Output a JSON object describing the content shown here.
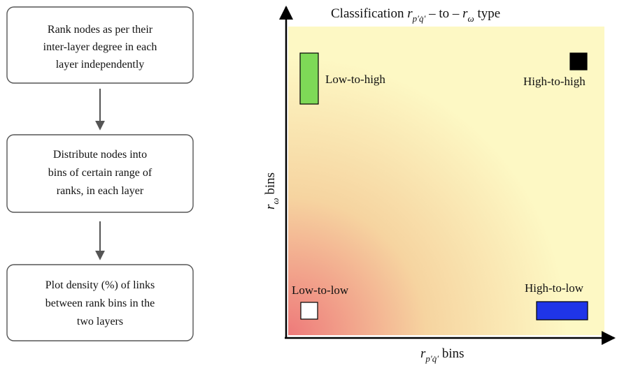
{
  "flowchart": {
    "steps": [
      {
        "lines": [
          "Rank nodes as per their",
          "inter-layer degree in each",
          "layer independently"
        ]
      },
      {
        "lines": [
          "Distribute nodes into",
          "bins of certain range of",
          "ranks, in each layer"
        ]
      },
      {
        "lines": [
          "Plot density (%) of links",
          "between rank bins in the",
          "two layers"
        ]
      }
    ]
  },
  "classification_plot": {
    "title": {
      "prefix": "Classification ",
      "var1": "r",
      "var1_sub": "p′q̇′",
      "middle": " – to – ",
      "var2": "r",
      "var2_sub": "ω",
      "suffix": " type"
    },
    "x_axis_label": {
      "var": "r",
      "sub": "p′q̇′",
      "suffix": " bins"
    },
    "y_axis_label": {
      "var": "r",
      "sub": "ω",
      "suffix": " bins"
    },
    "quadrants": [
      {
        "label": "Low-to-high",
        "color": "#7ed957"
      },
      {
        "label": "High-to-high",
        "color": "#000000"
      },
      {
        "label": "Low-to-low",
        "color": "#ffffff"
      },
      {
        "label": "High-to-low",
        "color": "#1f35e8"
      }
    ],
    "gradient_colors": {
      "hot": "#ee7a7a",
      "mid": "#f6d4a0",
      "cool": "#fdf8c4"
    }
  }
}
